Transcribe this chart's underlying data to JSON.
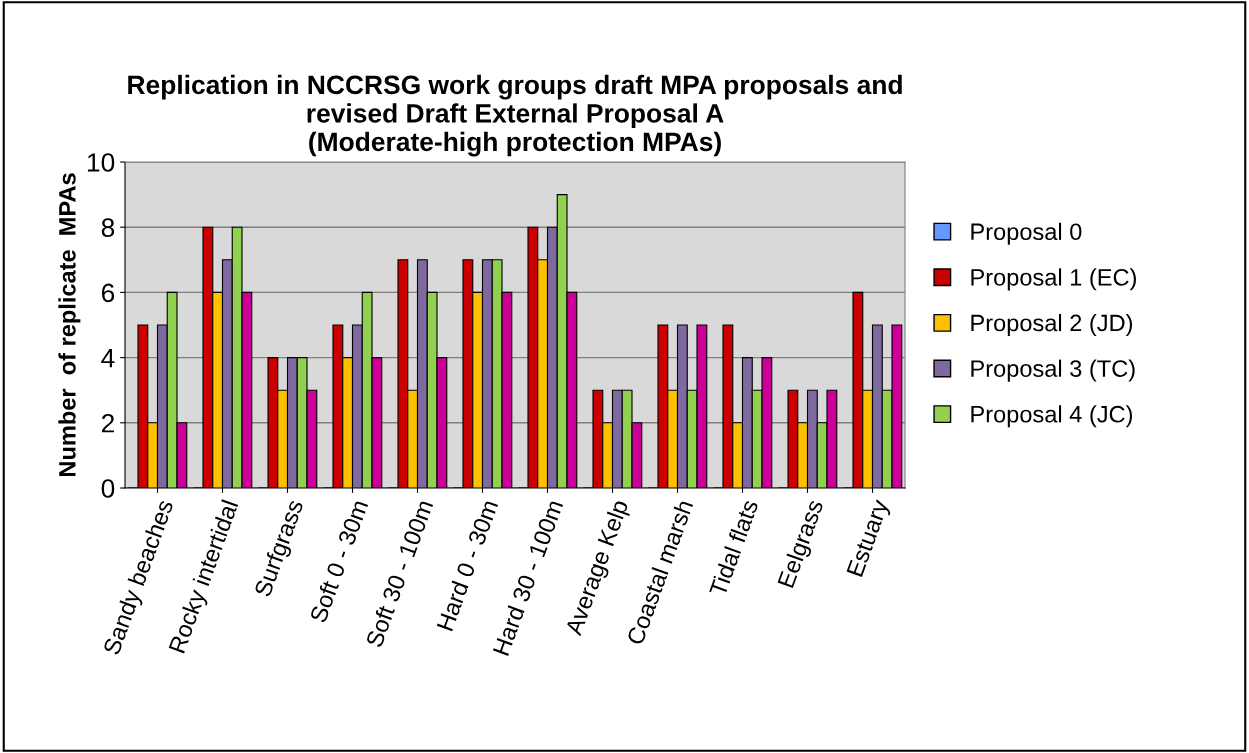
{
  "chart_data": {
    "type": "bar",
    "title": "Replication in NCCRSG work groups draft MPA proposals and\nrevised Draft External Proposal A\n(Moderate-high protection MPAs)",
    "ylabel": "Number  of replicate  MPAs",
    "categories": [
      "Sandy beaches",
      "Rocky intertidal",
      "Surfgrass",
      "Soft 0 - 30m",
      "Soft 30 - 100m",
      "Hard 0 - 30m",
      "Hard 30 - 100m",
      "Average Kelp",
      "Coastal marsh",
      "Tidal flats",
      "Eelgrass",
      "Estuary"
    ],
    "series": [
      {
        "name": "Proposal 0",
        "color": "#6699ff",
        "values": [
          0,
          0,
          0,
          0,
          0,
          0,
          0,
          0,
          0,
          0,
          0,
          0
        ]
      },
      {
        "name": "Proposal 1 (EC)",
        "color": "#cc0000",
        "values": [
          5,
          8,
          4,
          5,
          7,
          7,
          8,
          3,
          5,
          5,
          3,
          6
        ]
      },
      {
        "name": "Proposal 2 (JD)",
        "color": "#ffc000",
        "values": [
          2,
          6,
          3,
          4,
          3,
          6,
          7,
          2,
          3,
          2,
          2,
          3
        ]
      },
      {
        "name": "Proposal 3 (TC)",
        "color": "#7f6a9f",
        "values": [
          5,
          7,
          4,
          5,
          7,
          7,
          8,
          3,
          5,
          4,
          3,
          5
        ]
      },
      {
        "name": "Proposal 4 (JC)",
        "color": "#92d050",
        "values": [
          6,
          8,
          4,
          6,
          6,
          7,
          9,
          3,
          3,
          3,
          2,
          3
        ]
      },
      {
        "color": "#cc0099",
        "values": [
          2,
          6,
          3,
          4,
          4,
          6,
          6,
          2,
          5,
          4,
          3,
          5
        ]
      }
    ],
    "ylim": [
      0,
      10
    ],
    "yticks": [
      0,
      2,
      4,
      6,
      8,
      10
    ],
    "grid": "y",
    "legend": "right"
  }
}
